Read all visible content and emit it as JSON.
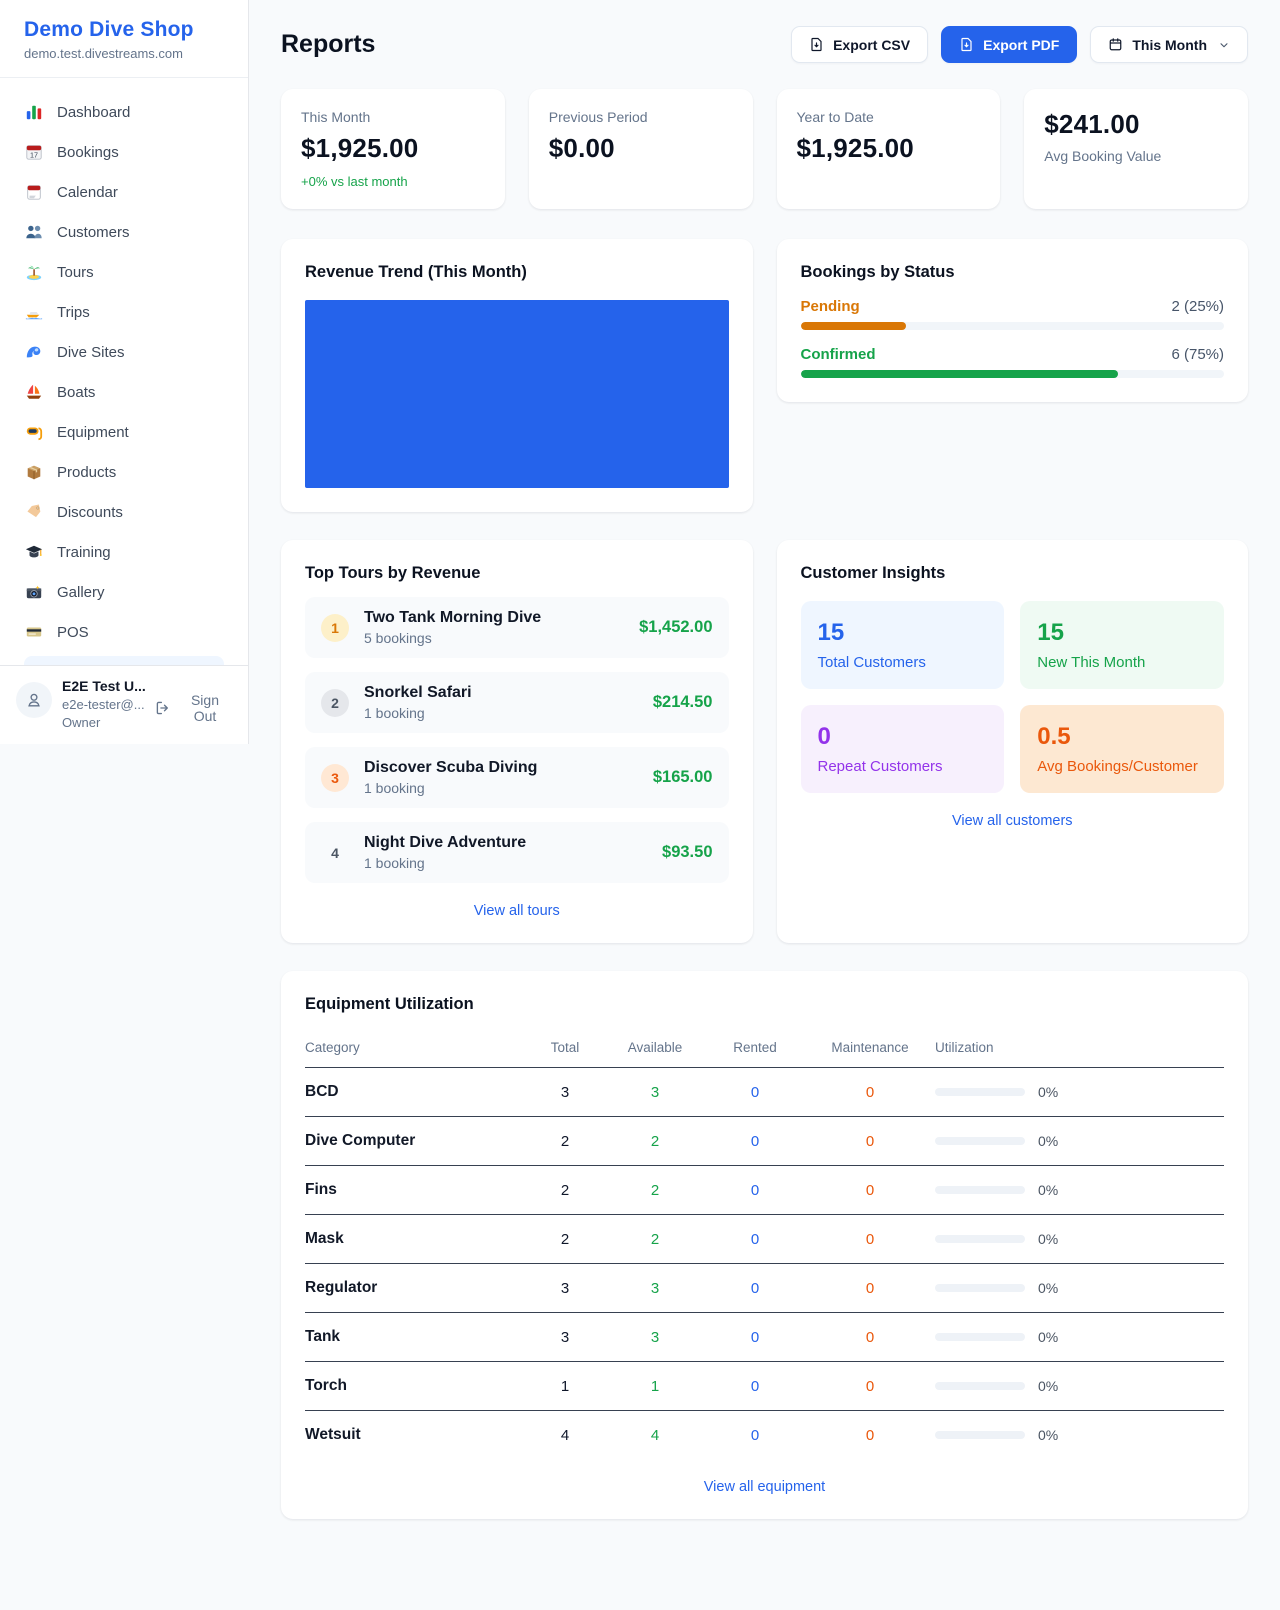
{
  "colors": {
    "accent_blue": "#2563eb",
    "green": "#16a34a",
    "pending_orange": "#d97706",
    "maintenance_orange": "#ea580c",
    "repeat_purple": "#9333ea"
  },
  "sidebar": {
    "shop_name": "Demo Dive Shop",
    "shop_domain": "demo.test.divestreams.com",
    "items": [
      {
        "icon": "bar-chart-icon",
        "label": "Dashboard"
      },
      {
        "icon": "bookings-calendar-icon",
        "label": "Bookings"
      },
      {
        "icon": "calendar-icon",
        "label": "Calendar"
      },
      {
        "icon": "customers-icon",
        "label": "Customers"
      },
      {
        "icon": "island-icon",
        "label": "Tours"
      },
      {
        "icon": "speedboat-icon",
        "label": "Trips"
      },
      {
        "icon": "wave-icon",
        "label": "Dive Sites"
      },
      {
        "icon": "sailboat-icon",
        "label": "Boats"
      },
      {
        "icon": "dive-mask-icon",
        "label": "Equipment"
      },
      {
        "icon": "package-icon",
        "label": "Products"
      },
      {
        "icon": "tag-icon",
        "label": "Discounts"
      },
      {
        "icon": "graduation-cap-icon",
        "label": "Training"
      },
      {
        "icon": "camera-icon",
        "label": "Gallery"
      },
      {
        "icon": "credit-card-icon",
        "label": "POS"
      }
    ],
    "user": {
      "name": "E2E Test U...",
      "email": "e2e-tester@...",
      "role": "Owner",
      "sign_out_label": "Sign Out"
    }
  },
  "header": {
    "title": "Reports",
    "export_csv_label": "Export CSV",
    "export_pdf_label": "Export PDF",
    "period_label": "This Month"
  },
  "stats": [
    {
      "label": "This Month",
      "value": "$1,925.00",
      "delta": "+0% vs last month"
    },
    {
      "label": "Previous Period",
      "value": "$0.00"
    },
    {
      "label": "Year to Date",
      "value": "$1,925.00"
    },
    {
      "label": "Avg Booking Value",
      "value": "$241.00"
    }
  ],
  "revenue_trend": {
    "title": "Revenue Trend (This Month)",
    "chart_data": {
      "type": "bar",
      "title": "Revenue Trend (This Month)",
      "note": "single solid blue block filling the plot area; no axes, ticks or labels visible",
      "color": "#2563eb"
    }
  },
  "bookings_by_status": {
    "title": "Bookings by Status",
    "rows": [
      {
        "label": "Pending",
        "count_text": "2 (25%)",
        "pct": 25
      },
      {
        "label": "Confirmed",
        "count_text": "6 (75%)",
        "pct": 75
      }
    ]
  },
  "top_tours": {
    "title": "Top Tours by Revenue",
    "rows": [
      {
        "rank": "1",
        "name": "Two Tank Morning Dive",
        "bookings": "5 bookings",
        "amount": "$1,452.00"
      },
      {
        "rank": "2",
        "name": "Snorkel Safari",
        "bookings": "1 booking",
        "amount": "$214.50"
      },
      {
        "rank": "3",
        "name": "Discover Scuba Diving",
        "bookings": "1 booking",
        "amount": "$165.00"
      },
      {
        "rank": "4",
        "name": "Night Dive Adventure",
        "bookings": "1 booking",
        "amount": "$93.50"
      }
    ],
    "view_all_label": "View all tours"
  },
  "customer_insights": {
    "title": "Customer Insights",
    "tiles": [
      {
        "value": "15",
        "label": "Total Customers"
      },
      {
        "value": "15",
        "label": "New This Month"
      },
      {
        "value": "0",
        "label": "Repeat Customers"
      },
      {
        "value": "0.5",
        "label": "Avg Bookings/Customer"
      }
    ],
    "view_all_label": "View all customers"
  },
  "equipment": {
    "title": "Equipment Utilization",
    "columns": [
      "Category",
      "Total",
      "Available",
      "Rented",
      "Maintenance",
      "Utilization"
    ],
    "rows": [
      {
        "category": "BCD",
        "total": "3",
        "available": "3",
        "rented": "0",
        "maintenance": "0",
        "utilization": "0%"
      },
      {
        "category": "Dive Computer",
        "total": "2",
        "available": "2",
        "rented": "0",
        "maintenance": "0",
        "utilization": "0%"
      },
      {
        "category": "Fins",
        "total": "2",
        "available": "2",
        "rented": "0",
        "maintenance": "0",
        "utilization": "0%"
      },
      {
        "category": "Mask",
        "total": "2",
        "available": "2",
        "rented": "0",
        "maintenance": "0",
        "utilization": "0%"
      },
      {
        "category": "Regulator",
        "total": "3",
        "available": "3",
        "rented": "0",
        "maintenance": "0",
        "utilization": "0%"
      },
      {
        "category": "Tank",
        "total": "3",
        "available": "3",
        "rented": "0",
        "maintenance": "0",
        "utilization": "0%"
      },
      {
        "category": "Torch",
        "total": "1",
        "available": "1",
        "rented": "0",
        "maintenance": "0",
        "utilization": "0%"
      },
      {
        "category": "Wetsuit",
        "total": "4",
        "available": "4",
        "rented": "0",
        "maintenance": "0",
        "utilization": "0%"
      }
    ],
    "view_all_label": "View all equipment"
  }
}
